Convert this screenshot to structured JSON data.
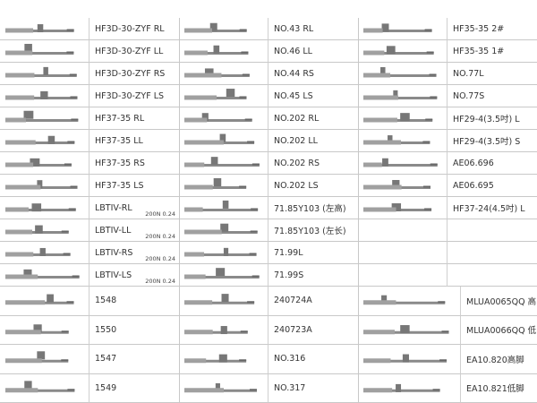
{
  "top": {
    "col1": [
      {
        "name": "HF3D-30-ZYF RL"
      },
      {
        "name": "HF3D-30-ZYF LL"
      },
      {
        "name": "HF3D-30-ZYF RS"
      },
      {
        "name": "HF3D-30-ZYF LS"
      },
      {
        "name": "HF37-35 RL"
      },
      {
        "name": "HF37-35 LL"
      },
      {
        "name": "HF37-35 RS"
      },
      {
        "name": "HF37-35 LS"
      },
      {
        "name": "LBTIV-RL",
        "spec": "200N 0.24"
      },
      {
        "name": "LBTIV-LL",
        "spec": "200N 0.24"
      },
      {
        "name": "LBTIV-RS",
        "spec": "200N 0.24"
      },
      {
        "name": "LBTIV-LS",
        "spec": "200N 0.24"
      }
    ],
    "col2": [
      {
        "name": "NO.43 RL"
      },
      {
        "name": "NO.46 LL"
      },
      {
        "name": "NO.44 RS"
      },
      {
        "name": "NO.45 LS"
      },
      {
        "name": "NO.202 RL"
      },
      {
        "name": "NO.202 LL"
      },
      {
        "name": "NO.202 RS"
      },
      {
        "name": "NO.202 LS"
      },
      {
        "name": "71.85Y103 (左高)"
      },
      {
        "name": "71.85Y103 (左长)"
      },
      {
        "name": "71.99L"
      },
      {
        "name": "71.99S"
      }
    ],
    "col3": [
      {
        "name": "HF35-35 2#"
      },
      {
        "name": "HF35-35 1#"
      },
      {
        "name": "NO.77L"
      },
      {
        "name": "NO.77S"
      },
      {
        "name": "HF29-4(3.5吋) L"
      },
      {
        "name": "HF29-4(3.5吋) S"
      },
      {
        "name": "AE06.696"
      },
      {
        "name": "AE06.695"
      },
      {
        "name": "HF37-24(4.5吋) L"
      }
    ]
  },
  "bottom": {
    "col1": [
      {
        "name": "1548"
      },
      {
        "name": "1550"
      },
      {
        "name": "1547"
      },
      {
        "name": "1549"
      }
    ],
    "col2": [
      {
        "name": "240724A"
      },
      {
        "name": "240723A"
      },
      {
        "name": "NO.316"
      },
      {
        "name": "NO.317"
      }
    ],
    "col3": [
      {
        "name": "MLUA0065QQ 高"
      },
      {
        "name": "MLUA0066QQ 低"
      },
      {
        "name": "EA10.820高脚"
      },
      {
        "name": "EA10.821低脚"
      }
    ]
  }
}
